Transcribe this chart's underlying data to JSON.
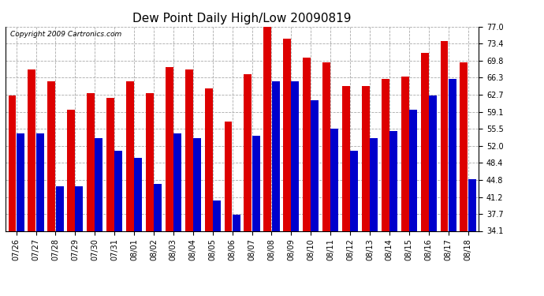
{
  "title": "Dew Point Daily High/Low 20090819",
  "copyright": "Copyright 2009 Cartronics.com",
  "categories": [
    "07/26",
    "07/27",
    "07/28",
    "07/29",
    "07/30",
    "07/31",
    "08/01",
    "08/02",
    "08/03",
    "08/04",
    "08/05",
    "08/06",
    "08/07",
    "08/08",
    "08/09",
    "08/10",
    "08/11",
    "08/12",
    "08/13",
    "08/14",
    "08/15",
    "08/16",
    "08/17",
    "08/18"
  ],
  "high_values": [
    62.5,
    68.0,
    65.5,
    59.5,
    63.0,
    62.0,
    65.5,
    63.0,
    68.5,
    68.0,
    64.0,
    57.0,
    67.0,
    77.0,
    74.5,
    70.5,
    69.5,
    64.5,
    64.5,
    66.0,
    66.5,
    71.5,
    74.0,
    69.5
  ],
  "low_values": [
    54.5,
    54.5,
    43.5,
    43.5,
    53.5,
    51.0,
    49.5,
    44.0,
    54.5,
    53.5,
    40.5,
    37.5,
    54.0,
    65.5,
    65.5,
    61.5,
    55.5,
    51.0,
    53.5,
    55.0,
    59.5,
    62.5,
    66.0,
    45.0
  ],
  "high_color": "#dd0000",
  "low_color": "#0000cc",
  "bg_color": "#ffffff",
  "plot_bg_color": "#ffffff",
  "yticks": [
    34.1,
    37.7,
    41.2,
    44.8,
    48.4,
    52.0,
    55.5,
    59.1,
    62.7,
    66.3,
    69.8,
    73.4,
    77.0
  ],
  "ymin": 34.1,
  "ymax": 77.0,
  "grid_color": "#aaaaaa",
  "title_fontsize": 11,
  "tick_fontsize": 7,
  "copyright_fontsize": 6.5
}
